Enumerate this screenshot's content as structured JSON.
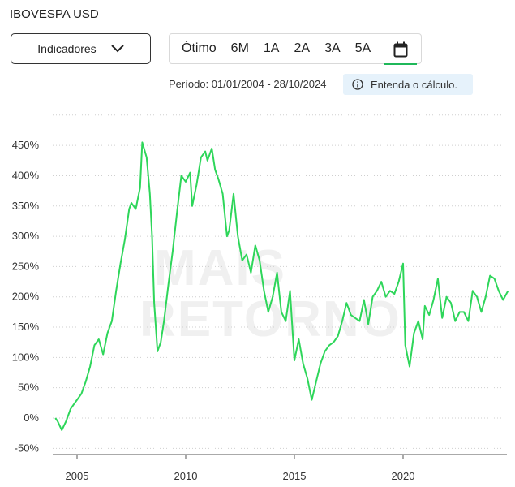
{
  "header": {
    "title": "IBOVESPA USD"
  },
  "controls": {
    "indicators_label": "Indicadores",
    "periods": [
      "Ótimo",
      "6M",
      "1A",
      "2A",
      "3A",
      "5A"
    ],
    "calendar_icon": "calendar-icon",
    "period_text": "Período: 01/01/2004 - 28/10/2024",
    "explain_label": "Entenda o cálculo."
  },
  "watermark": {
    "line1": "MAIS",
    "line2": "RETORNO"
  },
  "colors": {
    "series": "#2ed65a",
    "accent": "#1fb85a",
    "info_bg": "#e6f2fb"
  },
  "chart_data": {
    "type": "line",
    "y_ticks": [
      "450%",
      "400%",
      "350%",
      "300%",
      "250%",
      "200%",
      "150%",
      "100%",
      "50%",
      "0%",
      "-50%"
    ],
    "x_ticks": [
      "2005",
      "2010",
      "2015",
      "2020"
    ],
    "ylim": [
      -50,
      500
    ],
    "xlim": [
      2004.0,
      2024.83
    ],
    "grid": "horizontal dotted",
    "series": [
      {
        "x": [
          2004.0,
          2004.1,
          2004.3,
          2004.5,
          2004.7,
          2004.9,
          2005.0,
          2005.2,
          2005.4,
          2005.6,
          2005.8,
          2006.0,
          2006.2,
          2006.4,
          2006.6,
          2006.8,
          2007.0,
          2007.2,
          2007.4,
          2007.5,
          2007.7,
          2007.9,
          2008.0,
          2008.2,
          2008.35,
          2008.45,
          2008.55,
          2008.7,
          2008.85,
          2009.0,
          2009.2,
          2009.4,
          2009.6,
          2009.8,
          2010.0,
          2010.2,
          2010.3,
          2010.5,
          2010.7,
          2010.9,
          2011.0,
          2011.2,
          2011.35,
          2011.5,
          2011.7,
          2011.9,
          2012.0,
          2012.2,
          2012.4,
          2012.6,
          2012.8,
          2013.0,
          2013.2,
          2013.4,
          2013.6,
          2013.8,
          2014.0,
          2014.2,
          2014.4,
          2014.6,
          2014.8,
          2015.0,
          2015.2,
          2015.4,
          2015.6,
          2015.8,
          2016.0,
          2016.2,
          2016.4,
          2016.6,
          2016.8,
          2017.0,
          2017.2,
          2017.4,
          2017.6,
          2017.8,
          2018.0,
          2018.2,
          2018.4,
          2018.6,
          2018.8,
          2019.0,
          2019.2,
          2019.4,
          2019.6,
          2019.8,
          2020.0,
          2020.1,
          2020.3,
          2020.5,
          2020.7,
          2020.9,
          2021.0,
          2021.2,
          2021.4,
          2021.6,
          2021.8,
          2022.0,
          2022.2,
          2022.4,
          2022.6,
          2022.8,
          2023.0,
          2023.2,
          2023.4,
          2023.6,
          2023.8,
          2024.0,
          2024.2,
          2024.4,
          2024.6,
          2024.83
        ],
        "y": [
          0,
          -5,
          -20,
          -5,
          15,
          25,
          30,
          40,
          60,
          85,
          120,
          130,
          105,
          140,
          160,
          210,
          255,
          295,
          345,
          355,
          345,
          380,
          455,
          430,
          370,
          300,
          190,
          110,
          125,
          160,
          220,
          275,
          340,
          400,
          390,
          405,
          350,
          385,
          430,
          440,
          425,
          445,
          410,
          395,
          370,
          300,
          310,
          370,
          300,
          260,
          270,
          240,
          285,
          260,
          210,
          175,
          200,
          240,
          175,
          160,
          210,
          95,
          130,
          90,
          65,
          30,
          60,
          90,
          110,
          120,
          125,
          135,
          160,
          190,
          170,
          165,
          160,
          195,
          155,
          200,
          210,
          225,
          200,
          210,
          205,
          225,
          255,
          120,
          85,
          140,
          160,
          130,
          185,
          170,
          195,
          230,
          165,
          200,
          190,
          160,
          175,
          175,
          160,
          210,
          200,
          175,
          200,
          235,
          230,
          210,
          195,
          210
        ]
      }
    ]
  }
}
